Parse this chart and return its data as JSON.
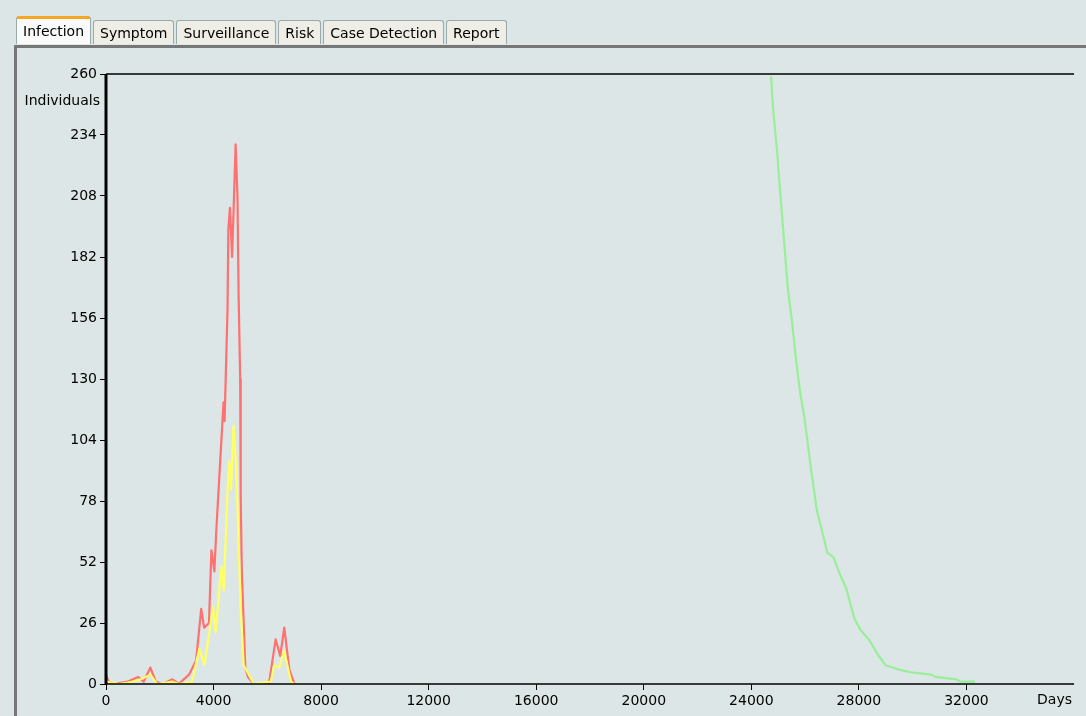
{
  "chart_data": {
    "type": "line",
    "xlabel": "Days",
    "ylabel": "Individuals",
    "annotations": [
      "Infection",
      "Symptom",
      "Surveillance",
      "Risk",
      "Case Detection",
      "Report"
    ],
    "xlim": [
      0,
      36000
    ],
    "xticks": [
      0,
      4000,
      8000,
      12000,
      16000,
      20000,
      24000,
      28000,
      32000
    ],
    "ylim": [
      0,
      260
    ],
    "yticks": [
      0,
      26,
      52,
      78,
      104,
      130,
      156,
      182,
      208,
      234,
      260
    ],
    "grid": false,
    "legend": false,
    "marker": "none",
    "line_style": "solid",
    "series": [
      {
        "color": "#ff7070",
        "x": [
          0,
          100,
          300,
          800,
          1000,
          1200,
          1400,
          1650,
          1850,
          2100,
          2470,
          2700,
          3090,
          3350,
          3540,
          3650,
          3830,
          3920,
          4030,
          4100,
          4370,
          4410,
          4520,
          4550,
          4610,
          4690,
          4740,
          4820,
          4890,
          4930,
          4990,
          5010,
          5050,
          5180,
          5280,
          5500,
          6060,
          6310,
          6480,
          6630,
          6820,
          7010
        ],
        "values": [
          4,
          1,
          0,
          1,
          2,
          3,
          1,
          7,
          1,
          0,
          2,
          0,
          4,
          10,
          32,
          24,
          26,
          57,
          48,
          65,
          120,
          112,
          160,
          194,
          203,
          182,
          200,
          230,
          208,
          167,
          130,
          80,
          49,
          7,
          3,
          0,
          0,
          19,
          12,
          24,
          6,
          0
        ]
      },
      {
        "color": "#ffff66",
        "x": [
          0,
          500,
          1000,
          1300,
          1650,
          1900,
          2470,
          2700,
          3200,
          3470,
          3660,
          3980,
          4080,
          4290,
          4380,
          4520,
          4590,
          4650,
          4740,
          4840,
          5010,
          5120,
          5500,
          6130,
          6250,
          6440,
          6630,
          6880,
          7000
        ],
        "values": [
          1,
          0,
          1,
          2,
          4,
          0,
          1,
          0,
          1,
          15,
          8,
          33,
          22,
          50,
          40,
          82,
          95,
          83,
          110,
          93,
          32,
          8,
          0,
          1,
          8,
          7,
          14,
          1,
          0
        ]
      },
      {
        "color": "#99ee99",
        "x": [
          24735,
          24810,
          24966,
          25042,
          25197,
          25353,
          25508,
          25664,
          25819,
          25970,
          26205,
          26437,
          26592,
          26823,
          27055,
          27286,
          27521,
          27828,
          28059,
          28370,
          28681,
          28988,
          29530,
          29916,
          30689,
          30845,
          31618,
          31772,
          32316
        ],
        "values": [
          259,
          245,
          226,
          214,
          192,
          169,
          155,
          138,
          124,
          114,
          93,
          74,
          67,
          56,
          54,
          47,
          41,
          28,
          23,
          19,
          13,
          8,
          6,
          5,
          4,
          3,
          2,
          1,
          1
        ]
      }
    ]
  }
}
